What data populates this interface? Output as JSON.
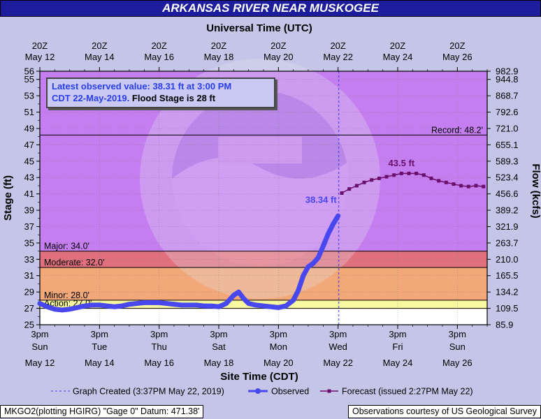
{
  "title": "ARKANSAS RIVER NEAR MUSKOGEE",
  "top_axis_title": "Universal Time (UTC)",
  "bottom_axis_title": "Site Time (CDT)",
  "y_left_label": "Stage (ft)",
  "y_right_label": "Flow (kcfs)",
  "latest_box": {
    "line1": "Latest observed value: 38.31  ft at 3:00 PM",
    "line2a": "CDT 22-May-2019.",
    "line2b": "Flood Stage is 28 ft"
  },
  "legend": {
    "created": "Graph Created (3:37PM May 22, 2019)",
    "observed": "Observed",
    "forecast": "Forecast (issued 2:27PM May 22)"
  },
  "footer_left": "MKGO2(plotting HGIRG) \"Gage 0\" Datum: 471.38'",
  "footer_right": "Observations courtesy of US Geological Survey",
  "colors": {
    "title_bg": "#1c1c9c",
    "observed": "#4848ee",
    "forecast": "#6a0f6a",
    "record_zone": "#c47ef0",
    "major_zone": "#e0707e",
    "moderate_zone": "#f2a878",
    "minor_zone": "#f6d48c",
    "action_zone": "#f8f8a0"
  },
  "chart_data": {
    "type": "line",
    "x_unit": "hours after 3pm CDT May 12 2019",
    "top_ticks": [
      {
        "line1": "20Z",
        "line2": "May 12",
        "x": 0
      },
      {
        "line1": "20Z",
        "line2": "May 14",
        "x": 48
      },
      {
        "line1": "20Z",
        "line2": "May 16",
        "x": 96
      },
      {
        "line1": "20Z",
        "line2": "May 18",
        "x": 144
      },
      {
        "line1": "20Z",
        "line2": "May 20",
        "x": 192
      },
      {
        "line1": "20Z",
        "line2": "May 22",
        "x": 240
      },
      {
        "line1": "20Z",
        "line2": "May 24",
        "x": 288
      },
      {
        "line1": "20Z",
        "line2": "May 26",
        "x": 336
      }
    ],
    "bottom_ticks": [
      {
        "time": "3pm",
        "day": "Sun",
        "date": "May 12",
        "x": 0
      },
      {
        "time": "3pm",
        "day": "Tue",
        "date": "May 14",
        "x": 48
      },
      {
        "time": "3pm",
        "day": "Thu",
        "date": "May 16",
        "x": 96
      },
      {
        "time": "3pm",
        "day": "Sat",
        "date": "May 18",
        "x": 144
      },
      {
        "time": "3pm",
        "day": "Mon",
        "date": "May 20",
        "x": 192
      },
      {
        "time": "3pm",
        "day": "Wed",
        "date": "May 22",
        "x": 240
      },
      {
        "time": "3pm",
        "day": "Fri",
        "date": "May 24",
        "x": 288
      },
      {
        "time": "3pm",
        "day": "Sun",
        "date": "May 26",
        "x": 336
      }
    ],
    "xlim": [
      0,
      360
    ],
    "ylim": [
      25,
      56
    ],
    "y_ticks": [
      25,
      27,
      29,
      31,
      33,
      35,
      37,
      39,
      41,
      43,
      45,
      47,
      49,
      51,
      53,
      55,
      56
    ],
    "flow_ticks": [
      {
        "stage": 25,
        "label": "85.9"
      },
      {
        "stage": 27,
        "label": "109.5"
      },
      {
        "stage": 29,
        "label": "134.2"
      },
      {
        "stage": 31,
        "label": "165.5"
      },
      {
        "stage": 33,
        "label": "210.0"
      },
      {
        "stage": 35,
        "label": "263.7"
      },
      {
        "stage": 37,
        "label": "321.9"
      },
      {
        "stage": 39,
        "label": "389.2"
      },
      {
        "stage": 41,
        "label": "456.6"
      },
      {
        "stage": 43,
        "label": "523.4"
      },
      {
        "stage": 45,
        "label": "589.3"
      },
      {
        "stage": 47,
        "label": "655.1"
      },
      {
        "stage": 49,
        "label": "721.0"
      },
      {
        "stage": 51,
        "label": "792.6"
      },
      {
        "stage": 53,
        "label": "868.7"
      },
      {
        "stage": 55,
        "label": "944.8"
      },
      {
        "stage": 56,
        "label": "982.9"
      }
    ],
    "flood_categories": [
      {
        "name": "Action",
        "label": "Action: 27.0'",
        "stage": 27.0
      },
      {
        "name": "Minor",
        "label": "Minor: 28.0'",
        "stage": 28.0
      },
      {
        "name": "Moderate",
        "label": "Moderate: 32.0'",
        "stage": 32.0
      },
      {
        "name": "Major",
        "label": "Major: 34.0'",
        "stage": 34.0
      },
      {
        "name": "Record",
        "label": "Record: 48.2'",
        "stage": 48.2
      }
    ],
    "graph_created_x": 240.6,
    "observed": {
      "name": "Observed",
      "peak_label": "38.34 ft",
      "x": [
        0,
        6,
        12,
        18,
        24,
        30,
        36,
        42,
        48,
        54,
        60,
        66,
        72,
        78,
        84,
        90,
        96,
        102,
        108,
        114,
        120,
        126,
        132,
        138,
        144,
        150,
        156,
        160,
        164,
        168,
        174,
        180,
        186,
        192,
        198,
        204,
        208,
        212,
        216,
        220,
        224,
        228,
        232,
        236,
        240
      ],
      "y": [
        27.6,
        27.2,
        26.9,
        26.8,
        26.9,
        27.1,
        27.3,
        27.4,
        27.4,
        27.3,
        27.2,
        27.3,
        27.5,
        27.6,
        27.7,
        27.7,
        27.7,
        27.6,
        27.5,
        27.4,
        27.4,
        27.4,
        27.3,
        27.3,
        27.2,
        27.6,
        28.6,
        29.0,
        28.2,
        27.6,
        27.4,
        27.3,
        27.2,
        27.1,
        27.3,
        28.0,
        29.2,
        31.0,
        32.1,
        32.5,
        33.2,
        34.6,
        36.1,
        37.3,
        38.31
      ]
    },
    "forecast": {
      "name": "Forecast",
      "peak_label": "43.5 ft",
      "x": [
        243,
        249,
        255,
        261,
        267,
        273,
        279,
        285,
        291,
        297,
        303,
        309,
        315,
        321,
        327,
        333,
        339,
        345,
        351,
        357
      ],
      "y": [
        41.1,
        41.6,
        42.0,
        42.4,
        42.7,
        42.9,
        43.1,
        43.3,
        43.5,
        43.5,
        43.5,
        43.3,
        42.9,
        42.6,
        42.4,
        42.2,
        42.0,
        41.9,
        42.0,
        41.9
      ]
    }
  }
}
